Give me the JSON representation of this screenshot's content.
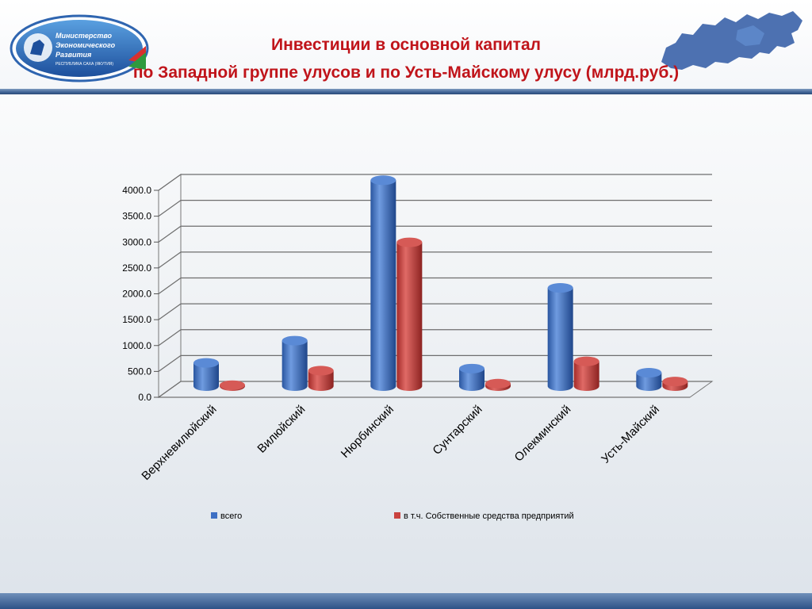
{
  "header": {
    "title_line1": "Инвестиции в основной капитал",
    "title_line2": "по Западной группе улусов и по Усть-Майскому улусу (млрд.руб.)",
    "logo_text": [
      "Министерство",
      "Экономического",
      "Развития"
    ],
    "logo_subtext": "РЕСПУБЛИКА САХА (ЯКУТИЯ)"
  },
  "chart_data": {
    "type": "bar",
    "categories": [
      "Верхневилюйский",
      "Вилюйский",
      "Нюрбинский",
      "Сунтарский",
      "Олекминский",
      "Усть-Майский"
    ],
    "series": [
      {
        "name": "всего",
        "values": [
          450,
          880,
          3980,
          340,
          1900,
          260
        ],
        "color": "#3d6fc4"
      },
      {
        "name": "в т.ч. Собственные средства предприятий",
        "values": [
          20,
          300,
          2780,
          50,
          480,
          90
        ],
        "color": "#c9423f"
      }
    ],
    "yticks": [
      "0.0",
      "500.0",
      "1000.0",
      "1500.0",
      "2000.0",
      "2500.0",
      "3000.0",
      "3500.0",
      "4000.0"
    ],
    "ylim": [
      0,
      4000
    ],
    "grid": true,
    "legend": "bottom"
  }
}
